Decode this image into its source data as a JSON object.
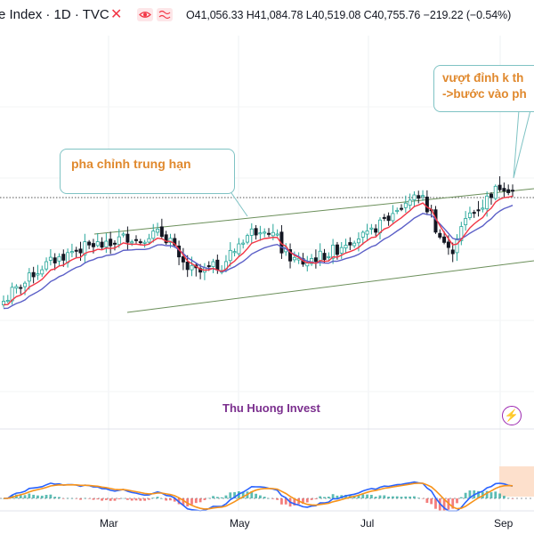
{
  "header": {
    "title": "e Index · 1D · TVC",
    "ohlc_text": "O41,056.33 H41,084.78 L40,519.08 C40,755.76 −219.22 (−0.54%)",
    "close_icon": "close-x-icon",
    "eye_icon": "eye-icon",
    "wave_icon": "wave-icon"
  },
  "annotations": {
    "middle_box": "pha chỉnh trung hạn",
    "top_right_line1": "vượt đỉnh k th",
    "top_right_line2": "->bước vào ph"
  },
  "watermark": "Thu Huong Invest",
  "bolt_icon": "lightning-icon",
  "colors": {
    "up": "#26a69a",
    "down": "#131722",
    "ma_fast": "#f23645",
    "ma_slow": "#5b5fc7",
    "trendline": "#6b8f5a",
    "macd": "#2962ff",
    "signal": "#f7931a",
    "annotation_text": "#e0892e",
    "annotation_border": "#7fc3c4",
    "watermark": "#7b2f8e"
  },
  "chart_data": {
    "type": "candlestick",
    "x_axis": {
      "ticks": [
        "Mar",
        "May",
        "Jul",
        "Sep"
      ]
    },
    "last_candle": {
      "open": 41056.33,
      "high": 41084.78,
      "low": 40519.08,
      "close": 40755.76,
      "change": -219.22,
      "change_pct": -0.54
    },
    "price_path_normalized": [
      0.08,
      0.16,
      0.22,
      0.3,
      0.36,
      0.4,
      0.44,
      0.48,
      0.5,
      0.52,
      0.5,
      0.56,
      0.58,
      0.55,
      0.6,
      0.6,
      0.56,
      0.38,
      0.32,
      0.3,
      0.34,
      0.36,
      0.46,
      0.56,
      0.62,
      0.66,
      0.6,
      0.46,
      0.4,
      0.38,
      0.42,
      0.44,
      0.48,
      0.54,
      0.58,
      0.58,
      0.66,
      0.72,
      0.8,
      0.86,
      0.9,
      0.78,
      0.58,
      0.46,
      0.64,
      0.76,
      0.82,
      0.92,
      0.98,
      0.94
    ],
    "overlays": [
      "ma-fast",
      "ma-slow",
      "channel-upper",
      "channel-lower",
      "horizontal-dotted-level"
    ],
    "indicator": {
      "name": "MACD",
      "series": [
        "macd",
        "signal",
        "histogram"
      ]
    }
  }
}
